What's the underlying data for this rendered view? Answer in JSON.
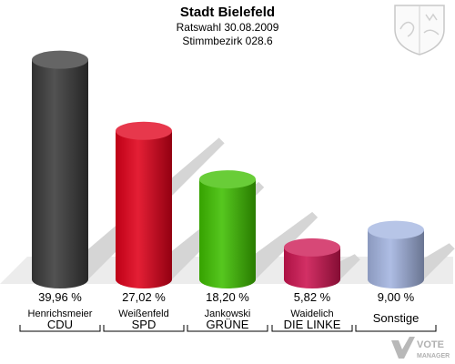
{
  "header": {
    "title": "Stadt Bielefeld",
    "subtitle_1": "Ratswahl 30.08.2009",
    "subtitle_2": "Stimmbezirk 028.6"
  },
  "watermark": {
    "line1": "VOTE",
    "line2": "MANAGER"
  },
  "colors": {
    "background": "#ffffff",
    "shadow": "#d5d5d5",
    "text": "#000000"
  },
  "chart_data": {
    "type": "bar",
    "unit": "%",
    "categories": [
      "CDU",
      "SPD",
      "GRÜNE",
      "DIE LINKE",
      "Sonstige"
    ],
    "candidates": [
      "Henrichsmeier",
      "Weißenfeld",
      "Jankowski",
      "Waidelich",
      ""
    ],
    "values": [
      39.96,
      27.02,
      18.2,
      5.82,
      9.0
    ],
    "value_labels": [
      "39,96 %",
      "27,02 %",
      "18,20 %",
      "5,82 %",
      "9,00 %"
    ],
    "colors": [
      "#3a3a3a",
      "#e0001a",
      "#3fbf00",
      "#cc1450",
      "#a3b4e0"
    ],
    "ylim": [
      0,
      40
    ]
  }
}
